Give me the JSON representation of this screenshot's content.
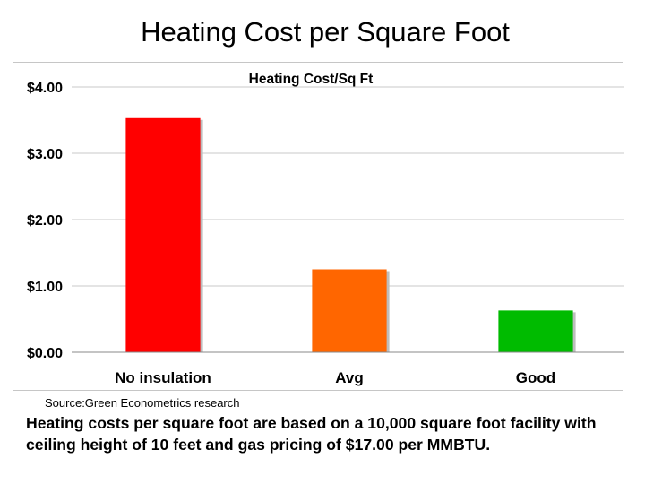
{
  "page_title": "Heating Cost per Square Foot",
  "chart_data": {
    "type": "bar",
    "title": "Heating Cost/Sq Ft",
    "categories": [
      "No insulation",
      "Avg",
      "Good"
    ],
    "values": [
      3.53,
      1.25,
      0.63
    ],
    "colors": [
      "#ff0000",
      "#ff6600",
      "#00bb00"
    ],
    "ylim": [
      0,
      4
    ],
    "yticks": [
      0,
      1,
      2,
      3,
      4
    ],
    "ytick_labels": [
      "$0.00",
      "$1.00",
      "$2.00",
      "$3.00",
      "$4.00"
    ],
    "xlabel": "",
    "ylabel": "",
    "grid": true,
    "legend": "none"
  },
  "source_note": "Source:Green Econometrics research",
  "footnote": "Heating costs per square foot are based on a 10,000 square foot facility with ceiling height of 10 feet and gas pricing of $17.00 per MMBTU."
}
